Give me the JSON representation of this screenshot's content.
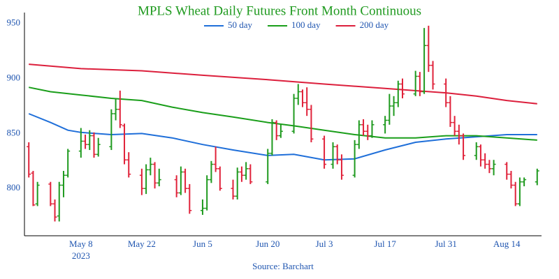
{
  "chart_data": {
    "type": "ohlc",
    "title": "MPLS Wheat Daily Futures Front Month Continuous",
    "annotation": "Source: Barchart",
    "up_color": "#1f9a1f",
    "down_color": "#e0223a",
    "x": [
      "2023-04-26",
      "2023-04-27",
      "2023-04-28",
      "2023-05-01",
      "2023-05-02",
      "2023-05-03",
      "2023-05-04",
      "2023-05-05",
      "2023-05-08",
      "2023-05-09",
      "2023-05-10",
      "2023-05-11",
      "2023-05-12",
      "2023-05-15",
      "2023-05-16",
      "2023-05-17",
      "2023-05-18",
      "2023-05-19",
      "2023-05-22",
      "2023-05-23",
      "2023-05-24",
      "2023-05-25",
      "2023-05-26",
      "2023-05-30",
      "2023-05-31",
      "2023-06-01",
      "2023-06-02",
      "2023-06-05",
      "2023-06-06",
      "2023-06-07",
      "2023-06-08",
      "2023-06-09",
      "2023-06-12",
      "2023-06-13",
      "2023-06-14",
      "2023-06-15",
      "2023-06-16",
      "2023-06-20",
      "2023-06-21",
      "2023-06-22",
      "2023-06-23",
      "2023-06-26",
      "2023-06-27",
      "2023-06-28",
      "2023-06-29",
      "2023-06-30",
      "2023-07-03",
      "2023-07-05",
      "2023-07-06",
      "2023-07-07",
      "2023-07-10",
      "2023-07-11",
      "2023-07-12",
      "2023-07-13",
      "2023-07-14",
      "2023-07-17",
      "2023-07-18",
      "2023-07-19",
      "2023-07-20",
      "2023-07-21",
      "2023-07-24",
      "2023-07-25",
      "2023-07-26",
      "2023-07-27",
      "2023-07-28",
      "2023-07-31",
      "2023-08-01",
      "2023-08-02",
      "2023-08-03",
      "2023-08-04",
      "2023-08-07",
      "2023-08-08",
      "2023-08-09",
      "2023-08-10",
      "2023-08-11",
      "2023-08-14",
      "2023-08-15",
      "2023-08-16",
      "2023-08-17",
      "2023-08-18",
      "2023-08-21"
    ],
    "open": [
      838,
      814,
      786,
      804,
      786,
      775,
      803,
      812,
      834,
      843,
      840,
      848,
      831,
      838,
      868,
      872,
      857,
      826,
      812,
      800,
      817,
      822,
      805,
      808,
      796,
      815,
      800,
      780,
      782,
      808,
      822,
      818,
      800,
      793,
      815,
      812,
      818,
      806,
      832,
      860,
      848,
      852,
      882,
      888,
      878,
      872,
      845,
      822,
      838,
      826,
      812,
      840,
      858,
      852,
      848,
      858,
      862,
      875,
      878,
      895,
      886,
      902,
      888,
      930,
      912,
      895,
      878,
      860,
      852,
      848,
      830,
      838,
      826,
      822,
      818,
      822,
      813,
      803,
      786,
      806,
      806
    ],
    "high": [
      842,
      816,
      806,
      806,
      790,
      806,
      816,
      836,
      855,
      849,
      853,
      851,
      846,
      872,
      882,
      889,
      859,
      833,
      818,
      822,
      828,
      824,
      818,
      812,
      820,
      818,
      804,
      790,
      812,
      825,
      838,
      820,
      808,
      819,
      820,
      824,
      822,
      836,
      863,
      862,
      858,
      886,
      895,
      890,
      892,
      876,
      848,
      842,
      840,
      831,
      844,
      862,
      863,
      858,
      862,
      866,
      886,
      884,
      898,
      900,
      907,
      906,
      946,
      948,
      916,
      900,
      884,
      866,
      858,
      850,
      842,
      840,
      832,
      826,
      826,
      824,
      816,
      806,
      810,
      810,
      818
    ],
    "low": [
      810,
      784,
      784,
      784,
      770,
      770,
      792,
      810,
      828,
      836,
      835,
      828,
      829,
      835,
      862,
      855,
      822,
      810,
      794,
      795,
      812,
      800,
      802,
      792,
      794,
      796,
      777,
      776,
      780,
      805,
      815,
      798,
      790,
      790,
      806,
      808,
      804,
      804,
      830,
      844,
      846,
      850,
      876,
      874,
      866,
      842,
      818,
      818,
      822,
      808,
      810,
      836,
      848,
      844,
      846,
      850,
      858,
      866,
      874,
      882,
      884,
      884,
      886,
      906,
      890,
      874,
      856,
      848,
      840,
      826,
      826,
      820,
      818,
      814,
      812,
      808,
      800,
      784,
      784,
      802,
      803
    ],
    "close": [
      813,
      785,
      803,
      786,
      774,
      803,
      812,
      834,
      843,
      840,
      848,
      831,
      840,
      868,
      872,
      858,
      826,
      813,
      800,
      817,
      822,
      805,
      808,
      796,
      815,
      800,
      780,
      782,
      808,
      822,
      818,
      800,
      793,
      815,
      812,
      818,
      806,
      832,
      860,
      848,
      852,
      882,
      888,
      878,
      872,
      845,
      822,
      838,
      826,
      812,
      840,
      858,
      852,
      848,
      858,
      862,
      875,
      878,
      895,
      886,
      902,
      888,
      930,
      912,
      895,
      878,
      860,
      852,
      848,
      830,
      838,
      826,
      822,
      818,
      822,
      813,
      803,
      786,
      806,
      808,
      816
    ],
    "series": [
      {
        "name": "50 day",
        "color": "#1f6fd9",
        "x": [
          "2023-04-26",
          "2023-05-01",
          "2023-05-05",
          "2023-05-08",
          "2023-05-15",
          "2023-05-22",
          "2023-05-29",
          "2023-06-05",
          "2023-06-12",
          "2023-06-20",
          "2023-06-26",
          "2023-07-03",
          "2023-07-10",
          "2023-07-17",
          "2023-07-24",
          "2023-07-31",
          "2023-08-07",
          "2023-08-14",
          "2023-08-21"
        ],
        "values": [
          868,
          860,
          853,
          851,
          849,
          850,
          846,
          840,
          835,
          830,
          831,
          826,
          827,
          835,
          842,
          845,
          847,
          849,
          849
        ]
      },
      {
        "name": "100 day",
        "color": "#1a9e1a",
        "x": [
          "2023-04-26",
          "2023-05-01",
          "2023-05-08",
          "2023-05-15",
          "2023-05-22",
          "2023-05-29",
          "2023-06-05",
          "2023-06-12",
          "2023-06-20",
          "2023-06-26",
          "2023-07-03",
          "2023-07-10",
          "2023-07-17",
          "2023-07-24",
          "2023-07-31",
          "2023-08-07",
          "2023-08-14",
          "2023-08-21"
        ],
        "values": [
          892,
          888,
          885,
          882,
          880,
          874,
          869,
          865,
          860,
          857,
          853,
          849,
          846,
          846,
          848,
          848,
          846,
          844
        ]
      },
      {
        "name": "200 day",
        "color": "#dc1f3c",
        "x": [
          "2023-04-26",
          "2023-05-08",
          "2023-05-22",
          "2023-06-05",
          "2023-06-20",
          "2023-07-03",
          "2023-07-17",
          "2023-07-31",
          "2023-08-07",
          "2023-08-14",
          "2023-08-21"
        ],
        "values": [
          913,
          909,
          907,
          903,
          899,
          895,
          891,
          887,
          884,
          880,
          877
        ]
      }
    ],
    "xlim": [
      "2023-04-25",
      "2023-08-22"
    ],
    "xticks": [
      {
        "value": "2023-05-08",
        "label": "May 8"
      },
      {
        "value": "2023-05-22",
        "label": "May 22"
      },
      {
        "value": "2023-06-05",
        "label": "Jun 5"
      },
      {
        "value": "2023-06-20",
        "label": "Jun 20"
      },
      {
        "value": "2023-07-03",
        "label": "Jul 3"
      },
      {
        "value": "2023-07-17",
        "label": "Jul 17"
      },
      {
        "value": "2023-07-31",
        "label": "Jul 31"
      },
      {
        "value": "2023-08-14",
        "label": "Aug 14"
      }
    ],
    "xtick_year": "2023",
    "ylim": [
      757,
      960
    ],
    "yticks": [
      800,
      850,
      900,
      950
    ],
    "grid": false
  }
}
